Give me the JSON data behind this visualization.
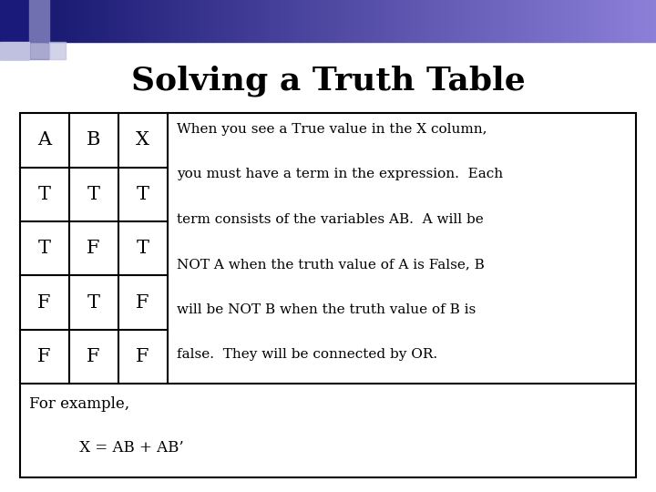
{
  "title": "Solving a Truth Table",
  "title_fontsize": 26,
  "title_fontweight": "bold",
  "background_color": "#ffffff",
  "header_row": [
    "A",
    "B",
    "X"
  ],
  "data_rows": [
    [
      "T",
      "T",
      "T"
    ],
    [
      "T",
      "F",
      "T"
    ],
    [
      "F",
      "T",
      "F"
    ],
    [
      "F",
      "F",
      "F"
    ]
  ],
  "explanation_lines": [
    "When you see a True value in the X column,",
    "you must have a term in the expression.  Each",
    "term consists of the variables AB.  A will be",
    "NOT A when the truth value of A is False, B",
    "will be NOT B when the truth value of B is",
    "false.  They will be connected by OR."
  ],
  "footer_line1": "For example,",
  "footer_line2": "     X = AB + AB’",
  "deco_dark": "#1a1a7a",
  "deco_mid": "#7070b0",
  "deco_light": "#c0c0e0"
}
